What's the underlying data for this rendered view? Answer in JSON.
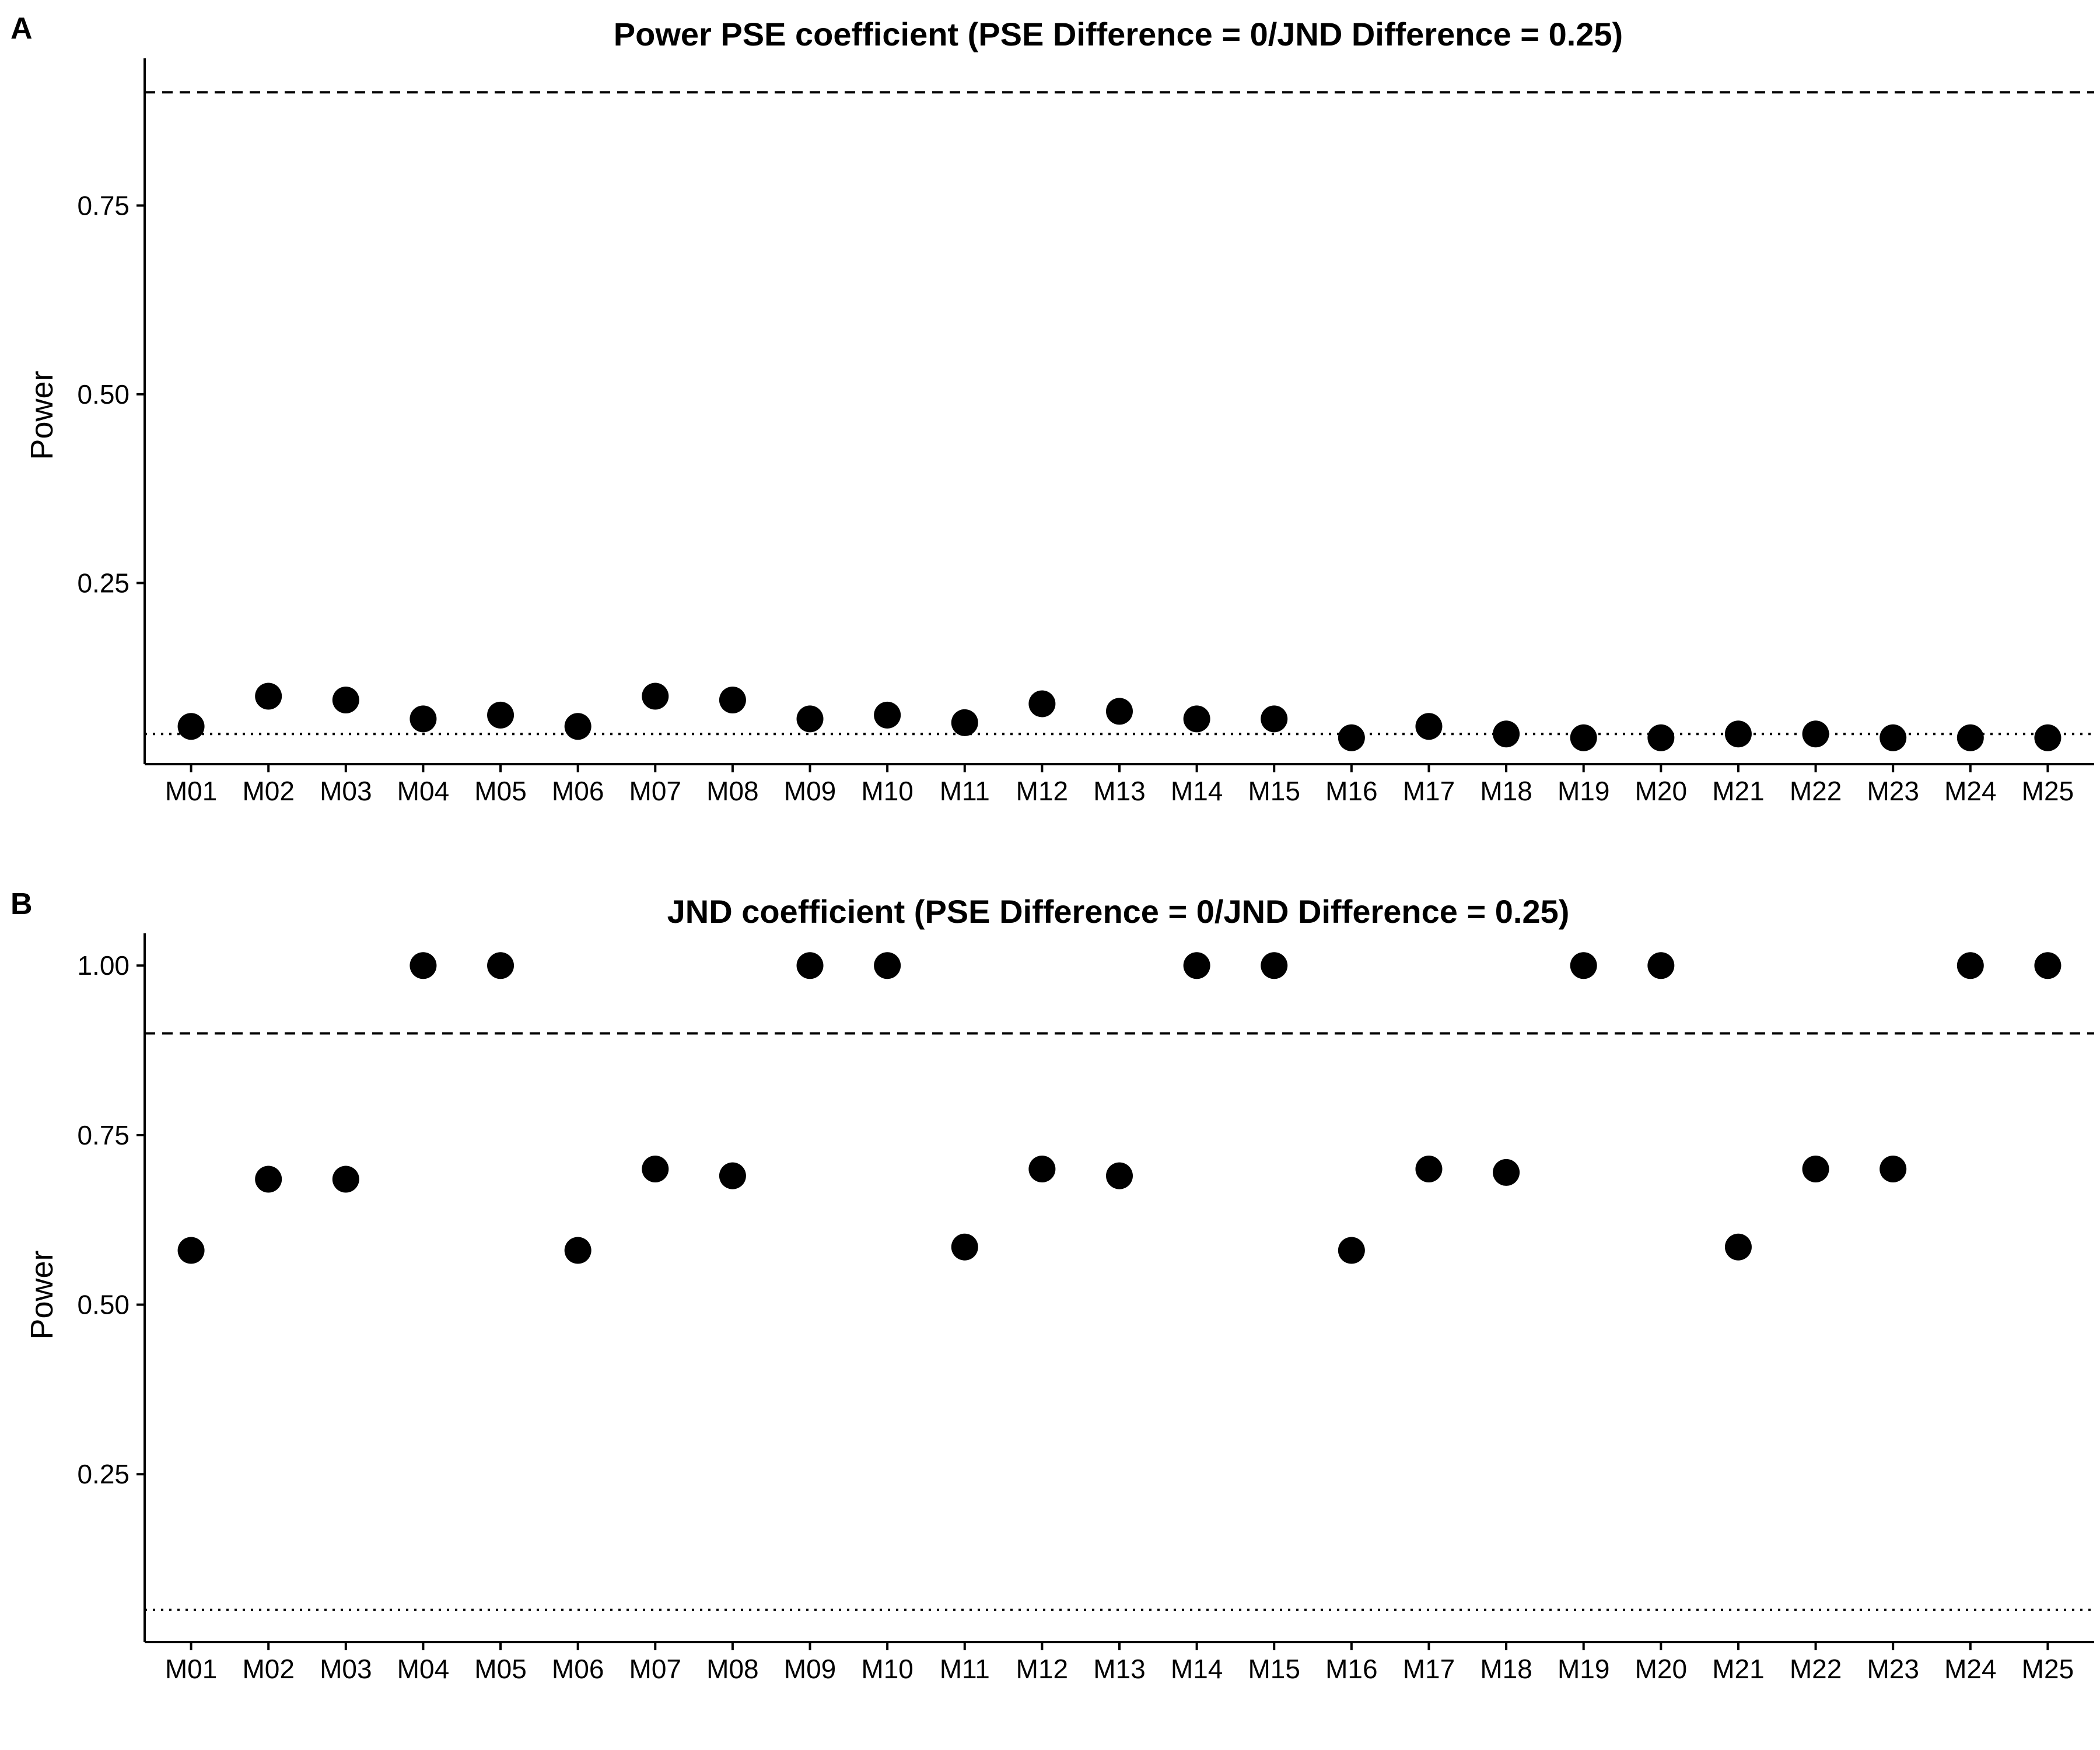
{
  "chart_data": [
    {
      "type": "scatter",
      "panel_label": "A",
      "title": "Power PSE coefficient (PSE Difference = 0/JND Difference = 0.25)",
      "xlabel": "",
      "ylabel": "Power",
      "categories": [
        "M01",
        "M02",
        "M03",
        "M04",
        "M05",
        "M06",
        "M07",
        "M08",
        "M09",
        "M10",
        "M11",
        "M12",
        "M13",
        "M14",
        "M15",
        "M16",
        "M17",
        "M18",
        "M19",
        "M20",
        "M21",
        "M22",
        "M23",
        "M24",
        "M25"
      ],
      "values": [
        0.06,
        0.1,
        0.095,
        0.07,
        0.075,
        0.06,
        0.1,
        0.095,
        0.07,
        0.075,
        0.065,
        0.09,
        0.08,
        0.07,
        0.07,
        0.045,
        0.06,
        0.05,
        0.045,
        0.045,
        0.05,
        0.05,
        0.045,
        0.045,
        0.045
      ],
      "yticks": [
        0.25,
        0.5,
        0.75
      ],
      "ytick_labels": [
        "0.25",
        "0.50",
        "0.75"
      ],
      "ylim": [
        0.01,
        0.945
      ],
      "reference_lines": [
        {
          "value": 0.9,
          "style": "dashed"
        },
        {
          "value": 0.05,
          "style": "dotted"
        }
      ],
      "grid": false,
      "point_color": "#000000"
    },
    {
      "type": "scatter",
      "panel_label": "B",
      "title": "JND coefficient (PSE Difference = 0/JND Difference = 0.25)",
      "xlabel": "",
      "ylabel": "Power",
      "categories": [
        "M01",
        "M02",
        "M03",
        "M04",
        "M05",
        "M06",
        "M07",
        "M08",
        "M09",
        "M10",
        "M11",
        "M12",
        "M13",
        "M14",
        "M15",
        "M16",
        "M17",
        "M18",
        "M19",
        "M20",
        "M21",
        "M22",
        "M23",
        "M24",
        "M25"
      ],
      "values": [
        0.58,
        0.685,
        0.685,
        1.0,
        1.0,
        0.58,
        0.7,
        0.69,
        1.0,
        1.0,
        0.585,
        0.7,
        0.69,
        1.0,
        1.0,
        0.58,
        0.7,
        0.695,
        1.0,
        1.0,
        0.585,
        0.7,
        0.7,
        1.0,
        1.0
      ],
      "yticks": [
        0.25,
        0.5,
        0.75,
        1.0
      ],
      "ytick_labels": [
        "0.25",
        "0.50",
        "0.75",
        "1.00"
      ],
      "ylim": [
        0.0025,
        1.0475
      ],
      "reference_lines": [
        {
          "value": 0.9,
          "style": "dashed"
        },
        {
          "value": 0.05,
          "style": "dotted"
        }
      ],
      "grid": false,
      "point_color": "#000000"
    }
  ]
}
